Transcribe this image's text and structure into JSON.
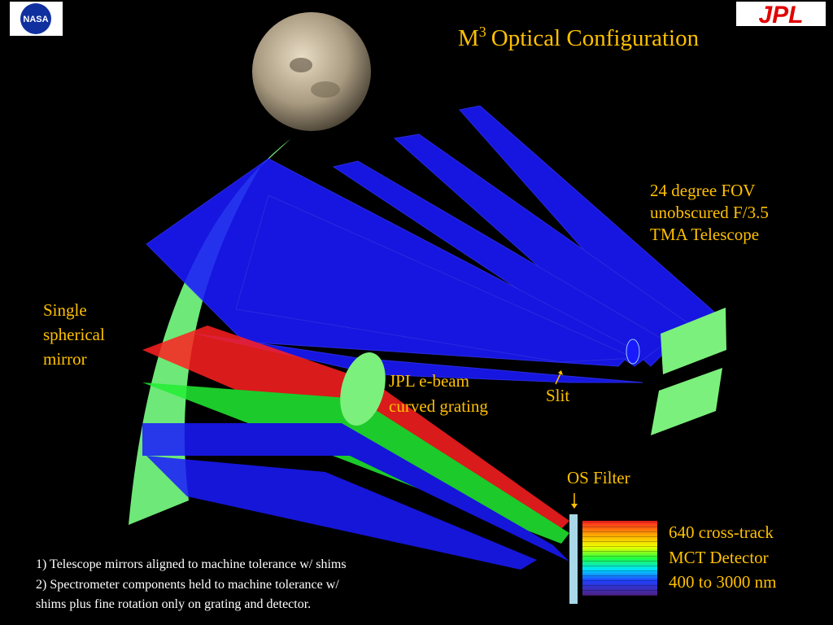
{
  "logos": {
    "left": "NASA",
    "right": "JPL"
  },
  "title": {
    "base": "M",
    "sup": "3",
    "rest": "Optical Configuration"
  },
  "telescope_label": [
    "24 degree FOV",
    "unobscured F/3.5",
    "TMA Telescope"
  ],
  "mirror_label": [
    "Single",
    "spherical",
    "mirror"
  ],
  "grating_label": [
    "JPL e-beam",
    "curved grating"
  ],
  "slit_label": "Slit",
  "filter_label": "OS Filter",
  "detector_label": [
    "640 cross-track",
    "MCT Detector",
    "400 to 3000 nm"
  ],
  "notes": [
    "1) Telescope mirrors aligned to machine tolerance w/ shims",
    "2) Spectrometer components held to machine tolerance w/",
    "shims plus fine rotation only on grating and detector."
  ]
}
